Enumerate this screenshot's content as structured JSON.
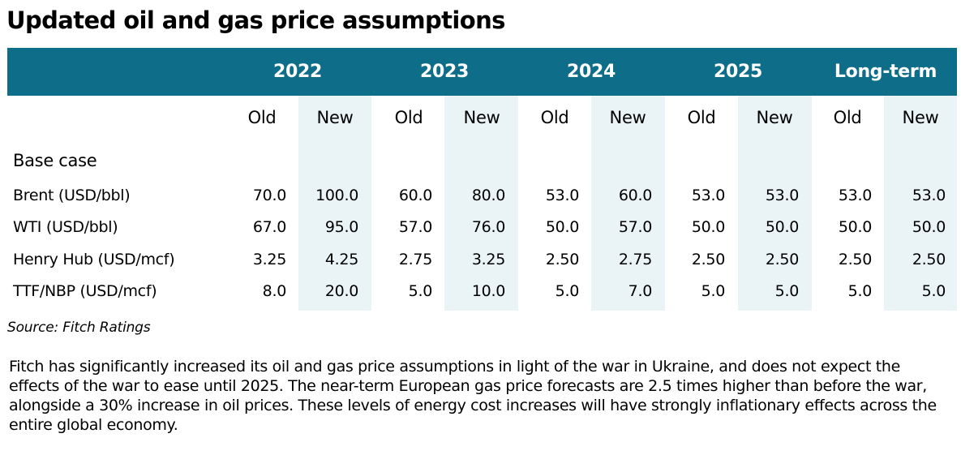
{
  "title": "Updated oil and gas price assumptions",
  "header": {
    "years": [
      "2022",
      "2023",
      "2024",
      "2025",
      "Long-term"
    ],
    "sub": [
      "Old",
      "New"
    ]
  },
  "section_label": "Base case",
  "rows": [
    {
      "label": "Brent (USD/bbl)",
      "values": [
        "70.0",
        "100.0",
        "60.0",
        "80.0",
        "53.0",
        "60.0",
        "53.0",
        "53.0",
        "53.0",
        "53.0"
      ]
    },
    {
      "label": "WTI (USD/bbl)",
      "values": [
        "67.0",
        "95.0",
        "57.0",
        "76.0",
        "50.0",
        "57.0",
        "50.0",
        "50.0",
        "50.0",
        "50.0"
      ]
    },
    {
      "label": "Henry Hub (USD/mcf)",
      "values": [
        "3.25",
        "4.25",
        "2.75",
        "3.25",
        "2.50",
        "2.75",
        "2.50",
        "2.50",
        "2.50",
        "2.50"
      ]
    },
    {
      "label": "TTF/NBP (USD/mcf)",
      "values": [
        "8.0",
        "20.0",
        "5.0",
        "10.0",
        "5.0",
        "7.0",
        "5.0",
        "5.0",
        "5.0",
        "5.0"
      ]
    }
  ],
  "source": "Source: Fitch Ratings",
  "paragraph": "Fitch has significantly increased its oil and gas price assumptions in light of the war in Ukraine, and does not expect the effects of the war to ease until 2025. The near-term European gas price forecasts are 2.5 times higher than before the war, alongside a 30% increase in oil prices. These levels of energy cost increases will have strongly inflationary effects across the entire global economy.",
  "colors": {
    "header_bg": "#0e6e8a",
    "new_col_bg": "#eaf4f7"
  }
}
